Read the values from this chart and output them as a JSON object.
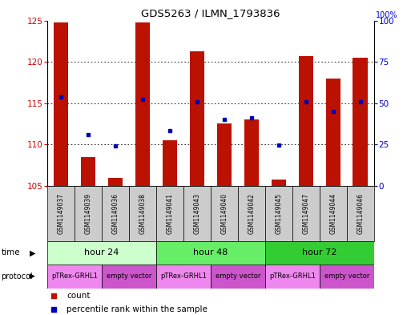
{
  "title": "GDS5263 / ILMN_1793836",
  "samples": [
    "GSM1149037",
    "GSM1149039",
    "GSM1149036",
    "GSM1149038",
    "GSM1149041",
    "GSM1149043",
    "GSM1149040",
    "GSM1149042",
    "GSM1149045",
    "GSM1149047",
    "GSM1149044",
    "GSM1149046"
  ],
  "bar_values": [
    124.8,
    108.5,
    106.0,
    124.8,
    110.5,
    121.3,
    112.5,
    113.0,
    105.8,
    120.7,
    118.0,
    120.5
  ],
  "bar_base": 105.0,
  "blue_values": [
    115.7,
    111.2,
    109.8,
    115.5,
    111.7,
    115.2,
    113.0,
    113.2,
    109.9,
    115.2,
    114.0,
    115.2
  ],
  "ylim_left": [
    105,
    125
  ],
  "ylim_right": [
    0,
    100
  ],
  "yticks_left": [
    105,
    110,
    115,
    120,
    125
  ],
  "yticks_right": [
    0,
    25,
    50,
    75,
    100
  ],
  "bar_color": "#bb1100",
  "dot_color": "#0000bb",
  "time_groups": [
    {
      "label": "hour 24",
      "start": 0,
      "end": 4,
      "color": "#ccffcc"
    },
    {
      "label": "hour 48",
      "start": 4,
      "end": 8,
      "color": "#66ee66"
    },
    {
      "label": "hour 72",
      "start": 8,
      "end": 12,
      "color": "#33cc33"
    }
  ],
  "protocol_groups": [
    {
      "label": "pTRex-GRHL1",
      "start": 0,
      "end": 2,
      "color": "#ee88ee"
    },
    {
      "label": "empty vector",
      "start": 2,
      "end": 4,
      "color": "#cc55cc"
    },
    {
      "label": "pTRex-GRHL1",
      "start": 4,
      "end": 6,
      "color": "#ee88ee"
    },
    {
      "label": "empty vector",
      "start": 6,
      "end": 8,
      "color": "#cc55cc"
    },
    {
      "label": "pTRex-GRHL1",
      "start": 8,
      "end": 10,
      "color": "#ee88ee"
    },
    {
      "label": "empty vector",
      "start": 10,
      "end": 12,
      "color": "#cc55cc"
    }
  ],
  "legend_items": [
    {
      "label": "count",
      "color": "#bb1100"
    },
    {
      "label": "percentile rank within the sample",
      "color": "#0000bb"
    }
  ],
  "sample_box_color": "#cccccc",
  "left_tick_color": "#cc0000",
  "right_tick_color": "#0000cc",
  "time_label": "time",
  "protocol_label": "protocol",
  "grid_yticks": [
    110,
    115,
    120
  ]
}
